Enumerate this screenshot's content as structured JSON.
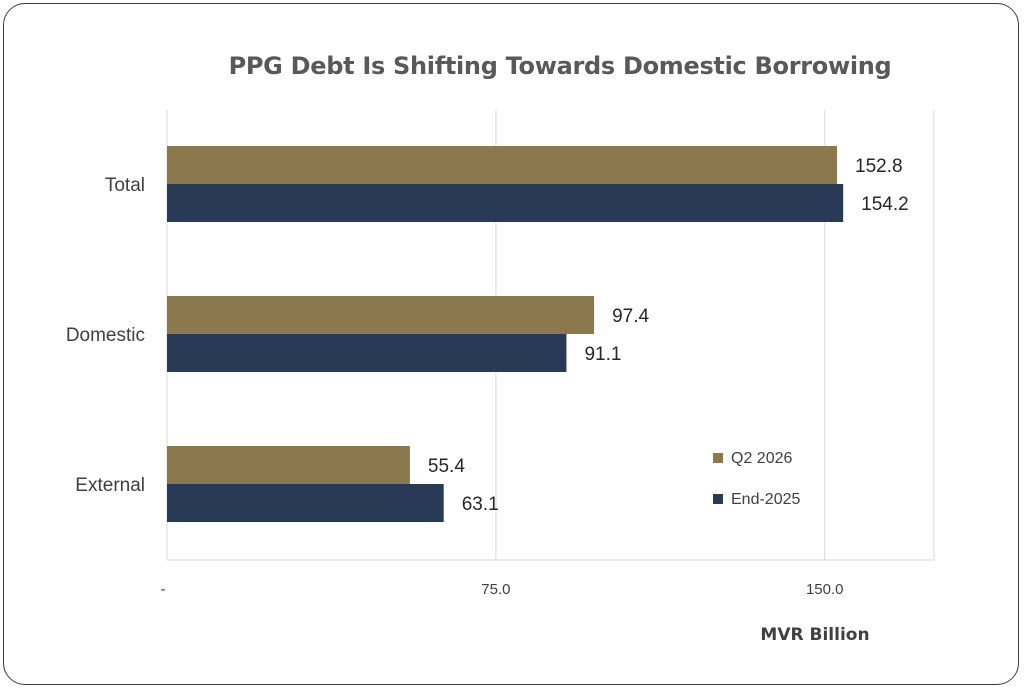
{
  "chart_data": {
    "type": "bar",
    "orientation": "horizontal",
    "title": "PPG Debt Is Shifting Towards Domestic Borrowing",
    "xlabel": "MVR Billion",
    "ylabel": "",
    "categories": [
      "Total",
      "Domestic",
      "External"
    ],
    "series": [
      {
        "name": "Q2 2026",
        "color": "#8b784d",
        "values": [
          152.8,
          97.4,
          55.4
        ]
      },
      {
        "name": "End-2025",
        "color": "#293a57",
        "values": [
          154.2,
          91.1,
          63.1
        ]
      }
    ],
    "data_labels": {
      "Q2 2026": [
        "152.8",
        "97.4",
        "55.4"
      ],
      "End-2025": [
        "154.2",
        "91.1",
        "63.1"
      ]
    },
    "xlim": [
      0,
      175
    ],
    "x_ticks": [
      0,
      75,
      150
    ],
    "x_tick_labels": [
      "-",
      "75.0",
      "150.0"
    ],
    "grid": "vertical",
    "legend_position": "bottom-right"
  }
}
